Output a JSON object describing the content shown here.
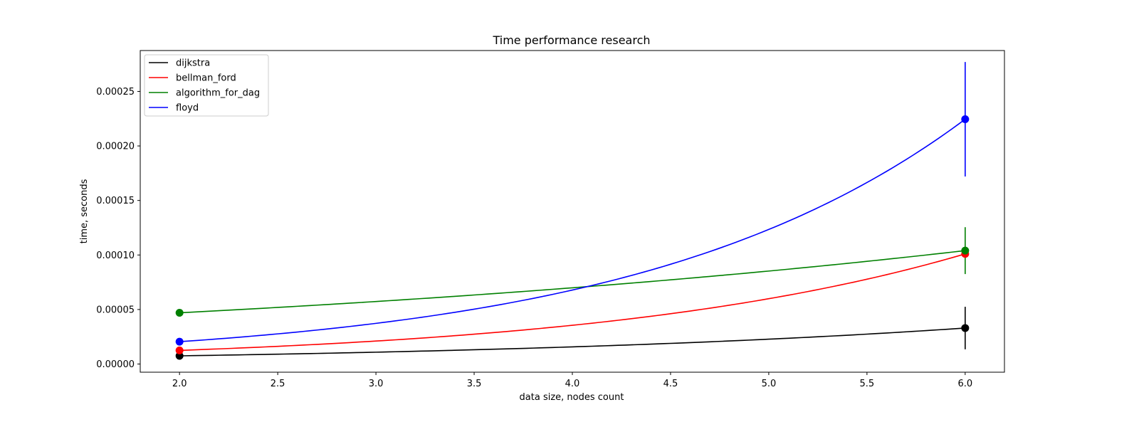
{
  "chart_data": {
    "type": "line",
    "title": "Time performance research",
    "xlabel": "data size, nodes count",
    "ylabel": "time, seconds",
    "xlim": [
      1.8,
      6.2
    ],
    "ylim": [
      -7.5e-06,
      0.0002875
    ],
    "x_ticks": [
      2.0,
      2.5,
      3.0,
      3.5,
      4.0,
      4.5,
      5.0,
      5.5,
      6.0
    ],
    "x_tick_labels": [
      "2.0",
      "2.5",
      "3.0",
      "3.5",
      "4.0",
      "4.5",
      "5.0",
      "5.5",
      "6.0"
    ],
    "y_ticks": [
      0.0,
      5e-05,
      0.0001,
      0.00015,
      0.0002,
      0.00025
    ],
    "y_tick_labels": [
      "0.00000",
      "0.00005",
      "0.00010",
      "0.00015",
      "0.00020",
      "0.00025"
    ],
    "grid": false,
    "legend_position": "top-left",
    "curve": "exponential-interpolation",
    "series": [
      {
        "name": "dijkstra",
        "color": "#000000",
        "x": [
          2,
          6
        ],
        "y": [
          7.5e-06,
          3.3e-05
        ],
        "yerr": [
          0,
          1.95e-05
        ]
      },
      {
        "name": "bellman_ford",
        "color": "#ff0000",
        "x": [
          2,
          6
        ],
        "y": [
          1.25e-05,
          0.000101
        ],
        "yerr": [
          0,
          0.0
        ]
      },
      {
        "name": "algorithm_for_dag",
        "color": "#008000",
        "x": [
          2,
          6
        ],
        "y": [
          4.7e-05,
          0.000104
        ],
        "yerr": [
          0,
          2.15e-05
        ]
      },
      {
        "name": "floyd",
        "color": "#0000ff",
        "x": [
          2,
          6
        ],
        "y": [
          2.05e-05,
          0.0002245
        ],
        "yerr": [
          0,
          5.25e-05
        ]
      }
    ]
  }
}
